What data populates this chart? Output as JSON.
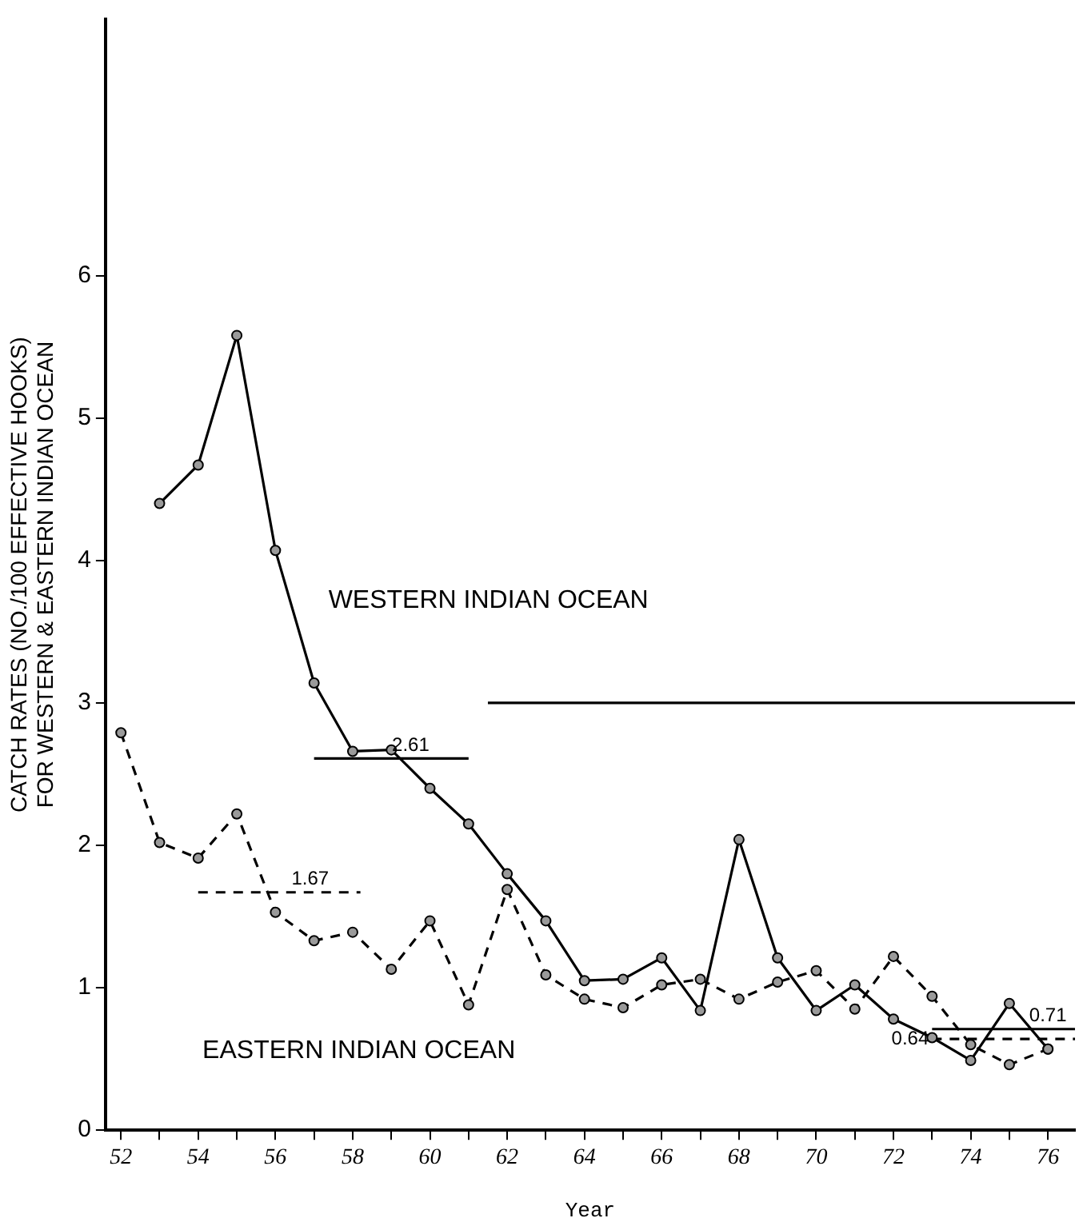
{
  "chart_data": {
    "type": "line",
    "xlabel": "Year",
    "ylabel": "CATCH RATES (NO./100 EFFECTIVE HOOKS)\nFOR WESTERN & EASTERN INDIAN OCEAN",
    "xlim": [
      51.6,
      76.7
    ],
    "ylim": [
      0,
      7.8
    ],
    "xticks": [
      52,
      {
        "value": 53,
        "label": null
      },
      54,
      {
        "value": 55,
        "label": null
      },
      56,
      {
        "value": 57,
        "label": null
      },
      58,
      {
        "value": 59,
        "label": null
      },
      60,
      {
        "value": 61,
        "label": null
      },
      62,
      {
        "value": 63,
        "label": null
      },
      64,
      {
        "value": 65,
        "label": null
      },
      66,
      {
        "value": 67,
        "label": null
      },
      68,
      {
        "value": 69,
        "label": null
      },
      70,
      {
        "value": 71,
        "label": null
      },
      72,
      {
        "value": 73,
        "label": null
      },
      74,
      {
        "value": 75,
        "label": null
      },
      76
    ],
    "yticks": [
      0,
      1,
      2,
      3,
      4,
      5,
      6
    ],
    "grid": false,
    "legend": false,
    "marker": "circle",
    "series": [
      {
        "name": "WESTERN INDIAN OCEAN",
        "color": "#000000",
        "line_style": "solid",
        "x": [
          53,
          54,
          55,
          56,
          57,
          58,
          59,
          60,
          61,
          62,
          63,
          64,
          65,
          66,
          67,
          68,
          69,
          70,
          71,
          72,
          73,
          74,
          75,
          76
        ],
        "values": [
          4.4,
          4.67,
          5.58,
          4.07,
          3.14,
          2.66,
          2.67,
          2.4,
          2.15,
          1.8,
          1.47,
          1.05,
          1.06,
          1.21,
          0.84,
          2.04,
          1.21,
          0.84,
          1.02,
          0.78,
          0.65,
          0.49,
          0.89,
          0.57
        ]
      },
      {
        "name": "EASTERN INDIAN OCEAN",
        "color": "#000000",
        "line_style": "dashed",
        "x": [
          52,
          53,
          54,
          55,
          56,
          57,
          58,
          59,
          60,
          61,
          62,
          63,
          64,
          65,
          66,
          67,
          68,
          69,
          70,
          71,
          72,
          73,
          74,
          75,
          76
        ],
        "values": [
          2.79,
          2.02,
          1.91,
          2.22,
          1.53,
          1.33,
          1.39,
          1.13,
          1.47,
          0.88,
          1.69,
          1.09,
          0.92,
          0.86,
          1.02,
          1.06,
          0.92,
          1.04,
          1.12,
          0.85,
          1.22,
          0.94,
          0.6,
          0.46,
          0.57
        ]
      },
      {
        "color": "#000000",
        "line_style": "solid",
        "marker": "none",
        "x": [
          61.5,
          76.7
        ],
        "values": [
          3,
          3
        ]
      },
      {
        "color": "#000000",
        "line_style": "solid",
        "marker": "none",
        "x": [
          57,
          61
        ],
        "values": [
          2.61,
          2.61
        ]
      },
      {
        "color": "#000000",
        "line_style": "dashed",
        "marker": "none",
        "x": [
          54,
          58.2
        ],
        "values": [
          1.67,
          1.67
        ]
      },
      {
        "color": "#000000",
        "line_style": "solid",
        "marker": "none",
        "x": [
          73,
          76.7
        ],
        "values": [
          0.71,
          0.71
        ]
      },
      {
        "color": "#000000",
        "line_style": "dashed",
        "marker": "none",
        "x": [
          73,
          76.7
        ],
        "values": [
          0.64,
          0.64
        ]
      }
    ],
    "annotations": [
      {
        "text": "2.61",
        "x": 59.5,
        "y": 2.61
      },
      {
        "text": "1.67",
        "x": 56.9,
        "y": 1.67
      },
      {
        "text": "0.71",
        "x": 76,
        "y": 0.71
      },
      {
        "text": "0.64",
        "x": 73,
        "y": 0.64
      }
    ]
  }
}
